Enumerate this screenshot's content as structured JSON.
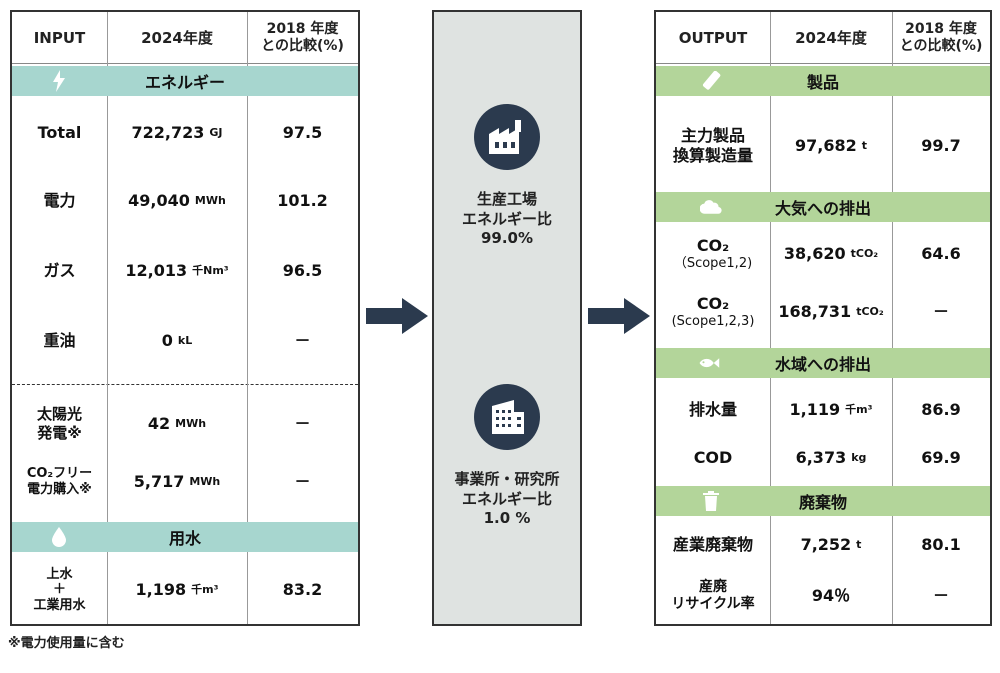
{
  "input": {
    "headers": [
      "INPUT",
      "2024年度",
      "2018 年度\nとの比較(%)"
    ],
    "energy_band": "エネルギー",
    "rows": [
      {
        "label": "Total",
        "value": "722,723",
        "unit": "GJ",
        "ratio": "97.5"
      },
      {
        "label": "電力",
        "value": "49,040",
        "unit": "MWh",
        "ratio": "101.2"
      },
      {
        "label": "ガス",
        "value": "12,013",
        "unit": "千Nm³",
        "ratio": "96.5"
      },
      {
        "label": "重油",
        "value": "0",
        "unit": "kL",
        "ratio": "－"
      },
      {
        "label": "太陽光\n発電※",
        "value": "42",
        "unit": "MWh",
        "ratio": "－"
      },
      {
        "label": "CO₂フリー\n電力購入※",
        "value": "5,717",
        "unit": "MWh",
        "ratio": "－"
      }
    ],
    "water_band": "用水",
    "water_row": {
      "label": "上水\n＋\n工業用水",
      "value": "1,198",
      "unit": "千m³",
      "ratio": "83.2"
    }
  },
  "center": {
    "factory": "生産工場\nエネルギー比\n99.0%",
    "office": "事業所・研究所\nエネルギー比\n1.0 %"
  },
  "output": {
    "headers": [
      "OUTPUT",
      "2024年度",
      "2018 年度\nとの比較(%)"
    ],
    "product_band": "製品",
    "product_row": {
      "label": "主力製品\n換算製造量",
      "value": "97,682",
      "unit": "t",
      "ratio": "99.7"
    },
    "air_band": "大気への排出",
    "air_rows": [
      {
        "label": "CO₂",
        "sub": "（Scope1,2)",
        "value": "38,620",
        "unit": "tCO₂",
        "ratio": "64.6"
      },
      {
        "label": "CO₂",
        "sub": "(Scope1,2,3)",
        "value": "168,731",
        "unit": "tCO₂",
        "ratio": "－"
      }
    ],
    "water_band": "水域への排出",
    "water_rows": [
      {
        "label": "排水量",
        "value": "1,119",
        "unit": "千m³",
        "ratio": "86.9"
      },
      {
        "label": "COD",
        "value": "6,373",
        "unit": "kg",
        "ratio": "69.9"
      }
    ],
    "waste_band": "廃棄物",
    "waste_rows": [
      {
        "label": "産業廃棄物",
        "value": "7,252",
        "unit": "t",
        "ratio": "80.1"
      },
      {
        "label": "産廃\nリサイクル率",
        "value": "94％",
        "unit": "",
        "ratio": "－"
      }
    ]
  },
  "footnote": "※電力使用量に含む",
  "colors": {
    "teal_band": "#a7d6cf",
    "green_band": "#b3d59a",
    "navy_icon": "#2b3a4e",
    "center_bg": "#dfe3e1",
    "arrow": "#2b3a4e"
  }
}
